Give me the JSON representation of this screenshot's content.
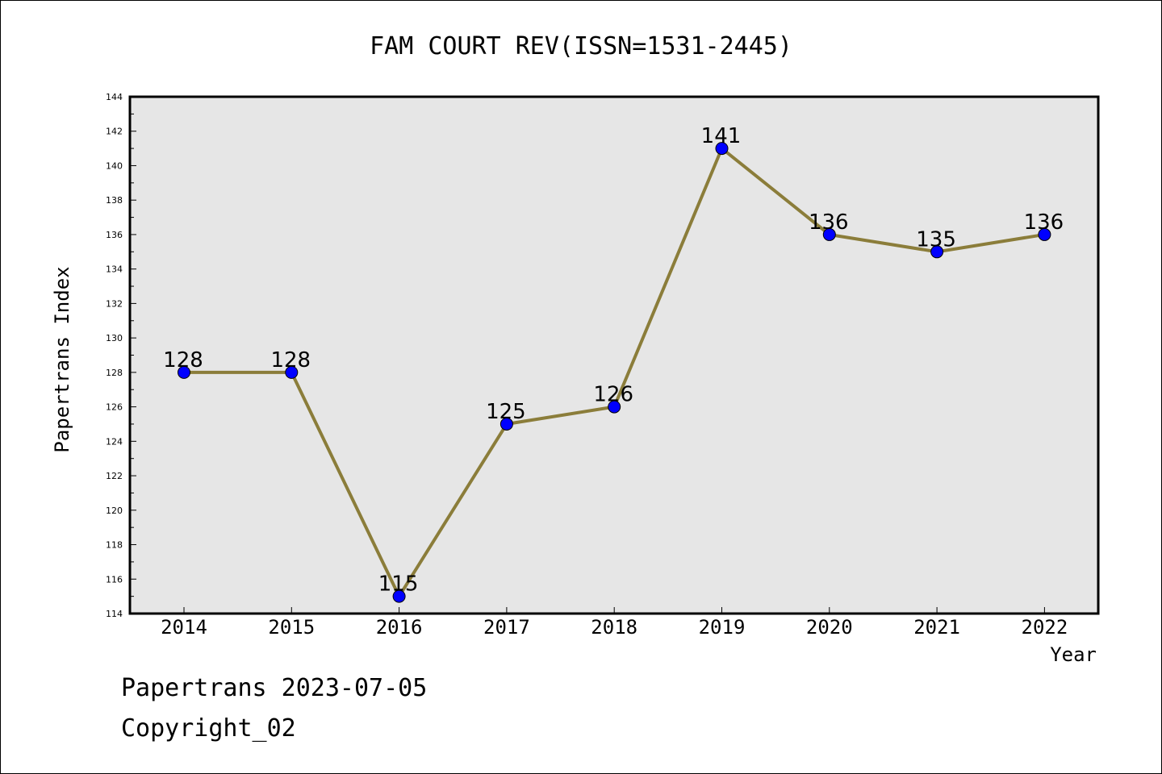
{
  "chart_data": {
    "type": "line",
    "title": "FAM COURT REV(ISSN=1531-2445)",
    "xlabel": "Year",
    "ylabel": "Papertrans Index",
    "categories": [
      "2014",
      "2015",
      "2016",
      "2017",
      "2018",
      "2019",
      "2020",
      "2021",
      "2022"
    ],
    "series": [
      {
        "values": [
          128,
          128,
          115,
          125,
          126,
          141,
          136,
          135,
          136
        ]
      }
    ],
    "ylim": [
      114,
      144
    ],
    "y_ticks": [
      114,
      116,
      118,
      120,
      122,
      124,
      126,
      128,
      130,
      132,
      134,
      136,
      138,
      140,
      142,
      144
    ],
    "grid": false,
    "data_labels": true,
    "colors": {
      "line": "#8b7d3a",
      "marker": "#0000ff",
      "plot_background": "#e6e6e6"
    }
  },
  "footer": {
    "date_line": "Papertrans 2023-07-05",
    "copyright": "Copyright_02"
  }
}
